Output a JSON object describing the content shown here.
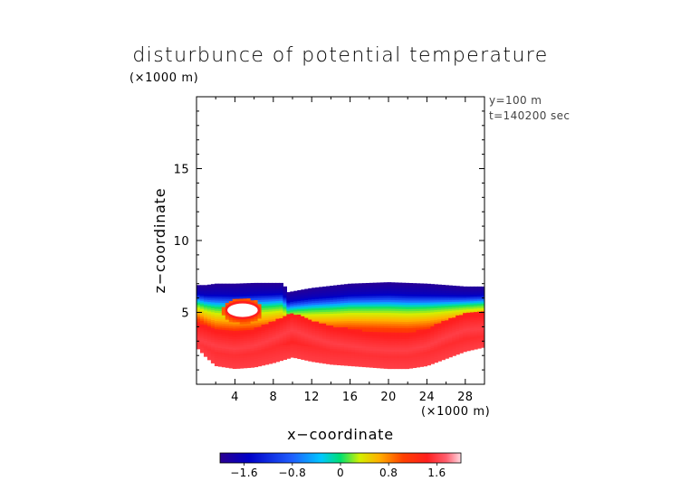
{
  "chart_data": {
    "type": "heatmap",
    "title": "disturbunce of potential temperature",
    "subtitle_z_unit": "(×1000 m)",
    "x_unit": "(×1000 m)",
    "xlabel": "x−coordinate",
    "ylabel": "z−coordinate",
    "info": [
      "y=100 m",
      "t=140200 sec"
    ],
    "xlim": [
      0,
      30
    ],
    "ylim": [
      0,
      20
    ],
    "x_ticks": [
      4,
      8,
      12,
      16,
      20,
      24,
      28
    ],
    "x_tick_labels": [
      "4",
      "8",
      "12",
      "16",
      "20",
      "24",
      "28"
    ],
    "y_ticks": [
      5,
      10,
      15
    ],
    "y_tick_labels": [
      "5",
      "10",
      "15"
    ],
    "colorbar": {
      "range": [
        -2.0,
        2.0
      ],
      "ticks": [
        -1.6,
        -0.8,
        0,
        0.8,
        1.6
      ],
      "tick_labels": [
        "−1.6",
        "−0.8",
        "0",
        "0.8",
        "1.6"
      ]
    },
    "field": {
      "top_z": [
        [
          0,
          6.9
        ],
        [
          1,
          6.9
        ],
        [
          2,
          7.0
        ],
        [
          4,
          7.0
        ],
        [
          6,
          7.05
        ],
        [
          9,
          7.05
        ],
        [
          9.5,
          6.4
        ],
        [
          12,
          6.7
        ],
        [
          16,
          7.0
        ],
        [
          20,
          7.1
        ],
        [
          24,
          7.0
        ],
        [
          28,
          6.8
        ],
        [
          30,
          6.8
        ]
      ],
      "bottom_z": [
        [
          0,
          2.6
        ],
        [
          1,
          1.9
        ],
        [
          2,
          1.3
        ],
        [
          4,
          1.1
        ],
        [
          6,
          1.2
        ],
        [
          8,
          1.5
        ],
        [
          10,
          1.9
        ],
        [
          12,
          1.6
        ],
        [
          14,
          1.4
        ],
        [
          16,
          1.3
        ],
        [
          18,
          1.2
        ],
        [
          20,
          1.1
        ],
        [
          22,
          1.1
        ],
        [
          24,
          1.3
        ],
        [
          26,
          1.8
        ],
        [
          28,
          2.3
        ],
        [
          30,
          2.6
        ]
      ],
      "profile": [
        [
          0,
          -1.95
        ],
        [
          0.13,
          -1.6
        ],
        [
          0.28,
          0.0
        ],
        [
          0.38,
          0.4
        ],
        [
          0.55,
          1.1
        ],
        [
          0.8,
          1.5
        ],
        [
          1.0,
          1.6
        ]
      ],
      "inner_band": [
        [
          0,
          3.2
        ],
        [
          2,
          2.7
        ],
        [
          4,
          2.5
        ],
        [
          6,
          2.7
        ],
        [
          8,
          3.2
        ],
        [
          10,
          3.8
        ],
        [
          12,
          3.3
        ],
        [
          14,
          2.9
        ],
        [
          16,
          2.7
        ],
        [
          18,
          2.5
        ],
        [
          20,
          2.4
        ],
        [
          22,
          2.4
        ],
        [
          24,
          2.7
        ],
        [
          26,
          3.3
        ],
        [
          28,
          3.8
        ],
        [
          30,
          3.9
        ]
      ],
      "bubble": {
        "x": 4.8,
        "z": 5.15,
        "rx": 1.7,
        "rz": 0.55
      }
    }
  }
}
